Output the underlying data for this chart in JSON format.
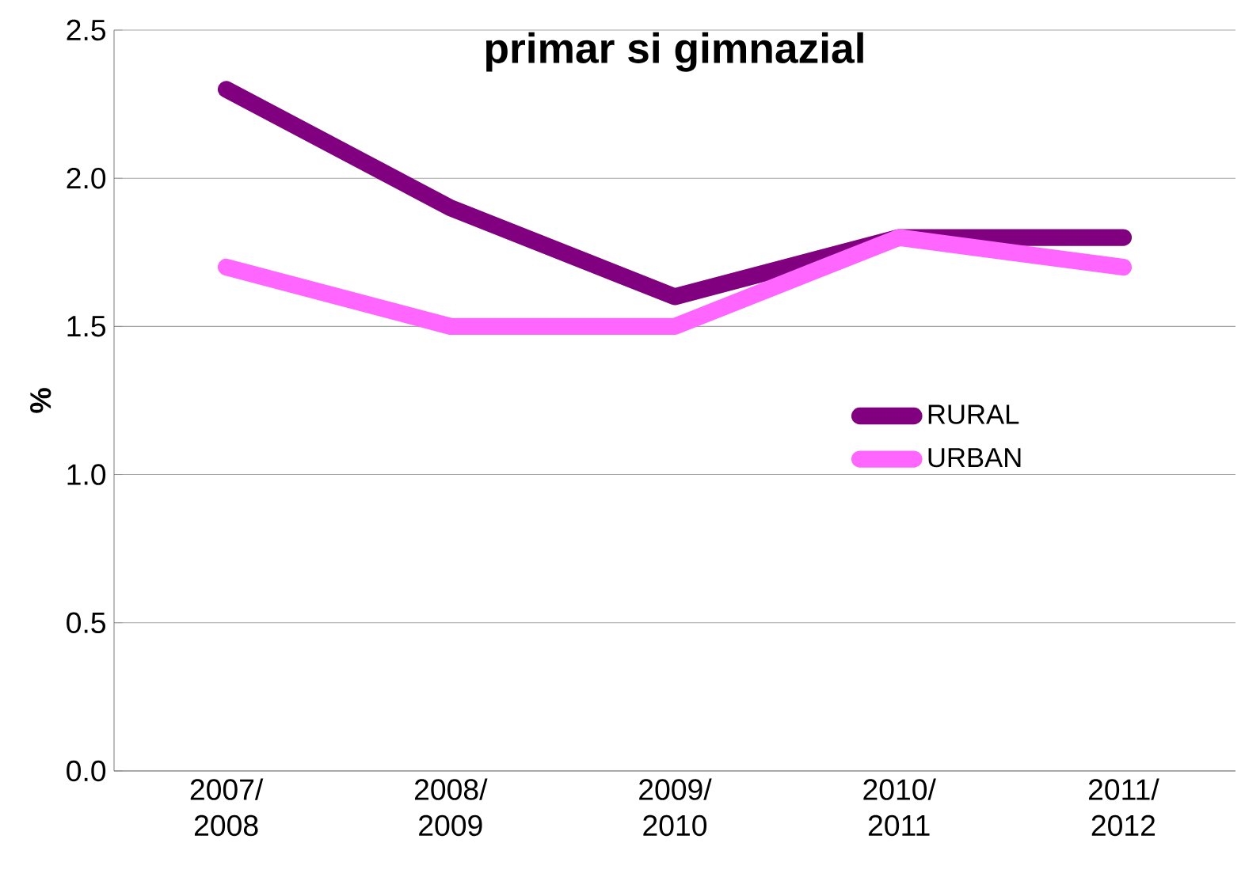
{
  "chart_data": {
    "type": "line",
    "title": "primar si gimnazial",
    "ylabel": "%",
    "categories": [
      "2007/ 2008",
      "2008/ 2009",
      "2009/ 2010",
      "2010/ 2011",
      "2011/ 2012"
    ],
    "series": [
      {
        "name": "RURAL",
        "color": "#800080",
        "values": [
          2.3,
          1.9,
          1.6,
          1.8,
          1.8
        ]
      },
      {
        "name": "URBAN",
        "color": "#ff66ff",
        "values": [
          1.7,
          1.5,
          1.5,
          1.8,
          1.7
        ]
      }
    ],
    "ylim": [
      0,
      2.5
    ],
    "yticks": [
      {
        "value": 0,
        "label": "0.0"
      },
      {
        "value": 0.5,
        "label": "0.5"
      },
      {
        "value": 1,
        "label": "1.0"
      },
      {
        "value": 1.5,
        "label": "1.5"
      },
      {
        "value": 2,
        "label": "2.0"
      },
      {
        "value": 2.5,
        "label": "2.5"
      }
    ],
    "grid": "y",
    "legend": "right",
    "marker": "none",
    "line_style": "solid"
  }
}
